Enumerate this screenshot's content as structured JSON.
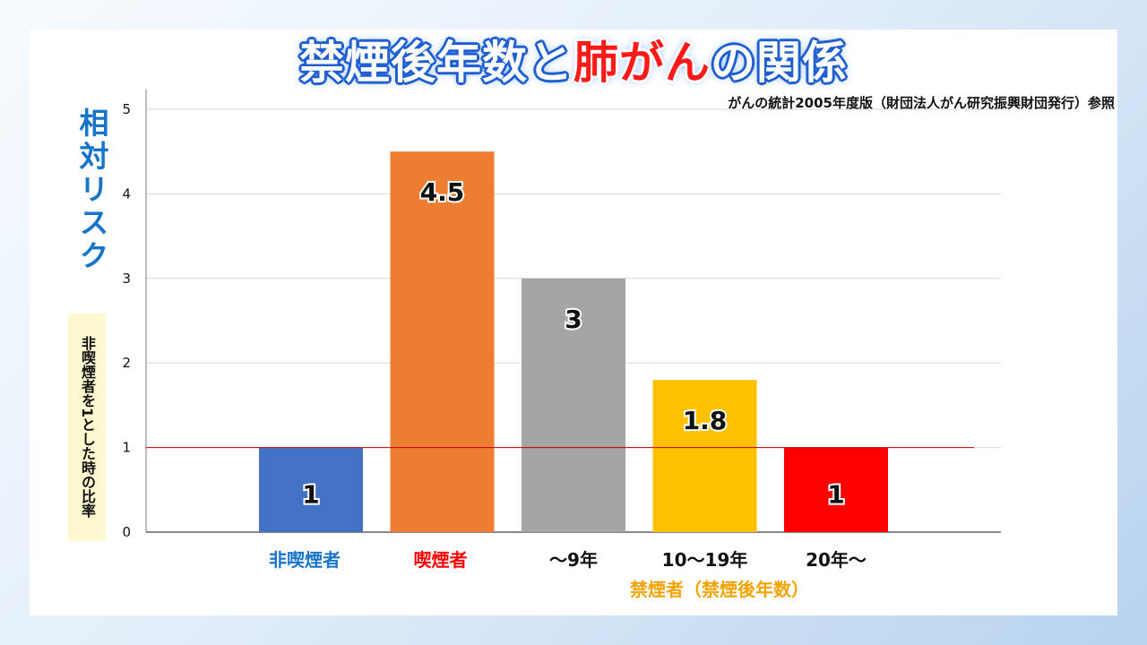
{
  "title": {
    "part1": "禁煙後年数と",
    "highlight": "肺がん",
    "part2": "の関係"
  },
  "source": "がんの統計2005年度版（財団法人がん研究振興財団発行）参照",
  "y_axis": {
    "label": "相対リスク",
    "sublabel": "非喫煙者を1とした時の比率"
  },
  "colors": {
    "title_outline": "#1f5fd0",
    "highlight": "#ff1a1a",
    "ylabel": "#1775c9",
    "group_label": "#f5a300",
    "reference_line": "#c00000"
  },
  "chart_data": {
    "type": "bar",
    "categories": [
      "非喫煙者",
      "喫煙者",
      "～9年",
      "10～19年",
      "20年～"
    ],
    "category_colors": [
      "#1775c9",
      "#ff0000",
      "#111111",
      "#111111",
      "#111111"
    ],
    "values": [
      1,
      4.5,
      3,
      1.8,
      1
    ],
    "value_labels": [
      "1",
      "4.5",
      "3",
      "1.8",
      "1"
    ],
    "bar_colors": [
      "#4472c4",
      "#ed7d31",
      "#a5a5a5",
      "#ffc000",
      "#ff0000"
    ],
    "ylim": [
      0,
      5
    ],
    "yticks": [
      0,
      1,
      2,
      3,
      4,
      5
    ],
    "grid": true,
    "reference_line": 1,
    "group_label": "禁煙者（禁煙後年数）"
  }
}
